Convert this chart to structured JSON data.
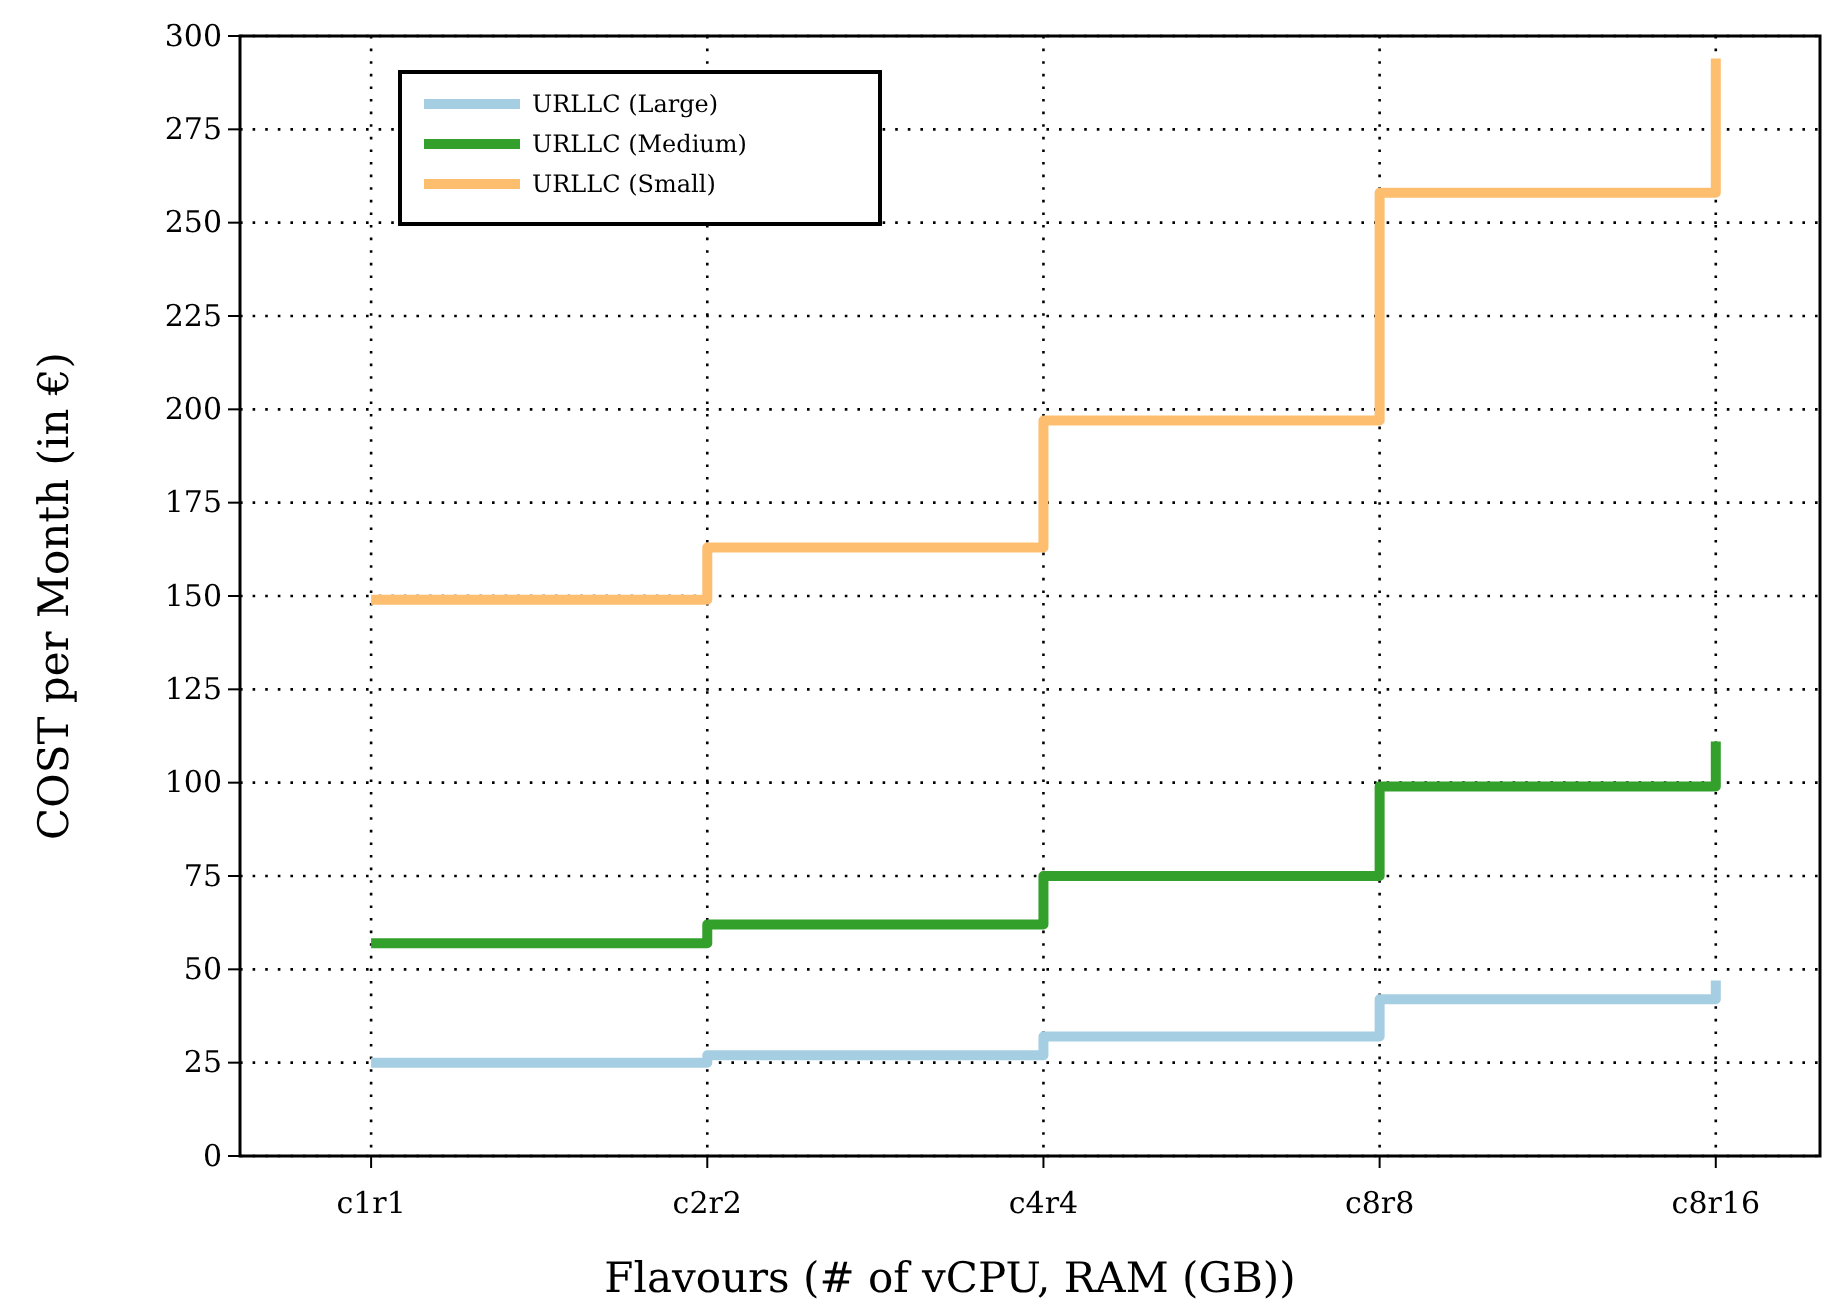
{
  "chart_data": {
    "type": "step",
    "xlabel": "Flavours (# of vCPU, RAM (GB))",
    "ylabel": "COST per Month (in €)",
    "categories": [
      "c1r1",
      "c2r2",
      "c4r4",
      "c8r8",
      "c8r16"
    ],
    "series": [
      {
        "name": "URLLC (Large)",
        "color": "#a6cee3",
        "values": [
          25,
          27,
          32,
          42,
          47
        ]
      },
      {
        "name": "URLLC (Medium)",
        "color": "#33a02c",
        "values": [
          57,
          62,
          75,
          99,
          111
        ]
      },
      {
        "name": "URLLC (Small)",
        "color": "#fdbf6f",
        "values": [
          149,
          163,
          197,
          258,
          294
        ]
      }
    ],
    "ylim": [
      0,
      300
    ],
    "yticks": [
      0,
      25,
      50,
      75,
      100,
      125,
      150,
      175,
      200,
      225,
      250,
      275,
      300
    ],
    "grid": true,
    "legend": "top left",
    "line_style": "solid",
    "marker": "none"
  }
}
